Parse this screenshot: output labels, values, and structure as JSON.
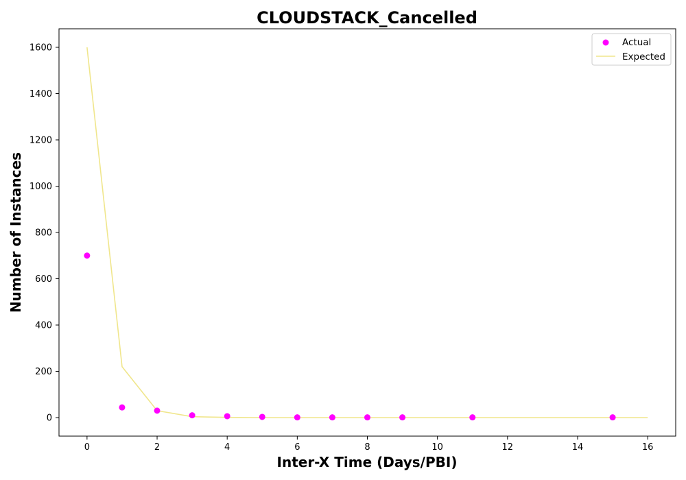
{
  "chart_data": {
    "type": "scatter",
    "title": "CLOUDSTACK_Cancelled",
    "xlabel": "Inter-X Time (Days/PBI)",
    "ylabel": "Number of Instances",
    "xlim": [
      -0.8,
      16.8
    ],
    "ylim": [
      -80,
      1680
    ],
    "xticks": [
      0,
      2,
      4,
      6,
      8,
      10,
      12,
      14,
      16
    ],
    "yticks": [
      0,
      200,
      400,
      600,
      800,
      1000,
      1200,
      1400,
      1600
    ],
    "grid": false,
    "legend_position": "top-right",
    "series": [
      {
        "name": "Actual",
        "type": "scatter",
        "color": "#ff00ff",
        "x": [
          0,
          1,
          2,
          3,
          4,
          5,
          6,
          7,
          8,
          9,
          11,
          15
        ],
        "y": [
          700,
          44,
          30,
          10,
          6,
          3,
          1,
          1,
          1,
          1,
          1,
          1
        ]
      },
      {
        "name": "Expected",
        "type": "line",
        "color": "#f0e68c",
        "x": [
          0,
          1,
          2,
          3,
          4,
          5,
          6,
          7,
          8,
          9,
          10,
          11,
          12,
          13,
          14,
          15,
          16
        ],
        "y": [
          1600,
          220,
          30,
          4,
          1,
          0,
          0,
          0,
          0,
          0,
          0,
          0,
          0,
          0,
          0,
          0,
          0
        ]
      }
    ]
  }
}
